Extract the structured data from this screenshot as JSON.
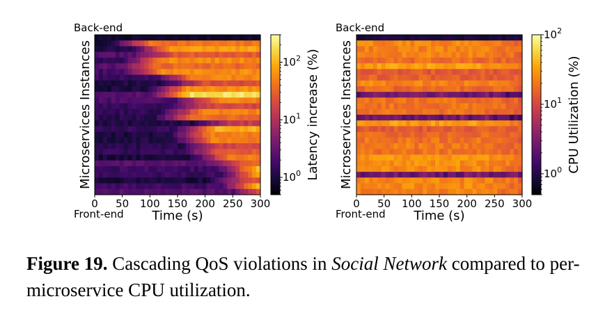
{
  "chart_data": [
    {
      "type": "heatmap",
      "xlabel": "Time (s)",
      "ylabel": "Microservices Instances",
      "y_top_label": "Back-end",
      "y_bottom_label": "Front-end",
      "x_ticks": [
        "0",
        "50",
        "100",
        "150",
        "200",
        "250",
        "300"
      ],
      "xlim": [
        0,
        300
      ],
      "colorbar_label": "Latency increase (%)",
      "colorbar_scale": "log",
      "colorbar_ticks": [
        "10^0",
        "10^1",
        "10^2"
      ],
      "colorbar_range": [
        0.5,
        300
      ],
      "colormap": "inferno",
      "grid": false
    },
    {
      "type": "heatmap",
      "xlabel": "Time (s)",
      "ylabel": "Microservices Instances",
      "y_top_label": "Back-end",
      "y_bottom_label": "Front-end",
      "x_ticks": [
        "0",
        "50",
        "100",
        "150",
        "200",
        "250",
        "300"
      ],
      "xlim": [
        0,
        300
      ],
      "colorbar_label": "CPU Utilization (%)",
      "colorbar_scale": "log",
      "colorbar_ticks": [
        "10^0",
        "10^1",
        "10^2"
      ],
      "colorbar_range": [
        0.5,
        100
      ],
      "colormap": "inferno",
      "grid": false
    }
  ],
  "caption": {
    "label": "Figure 19.",
    "text_before": " Cascading QoS violations in ",
    "app_name": "Social Network",
    "text_after": " compared to per-microservice CPU utilization."
  }
}
